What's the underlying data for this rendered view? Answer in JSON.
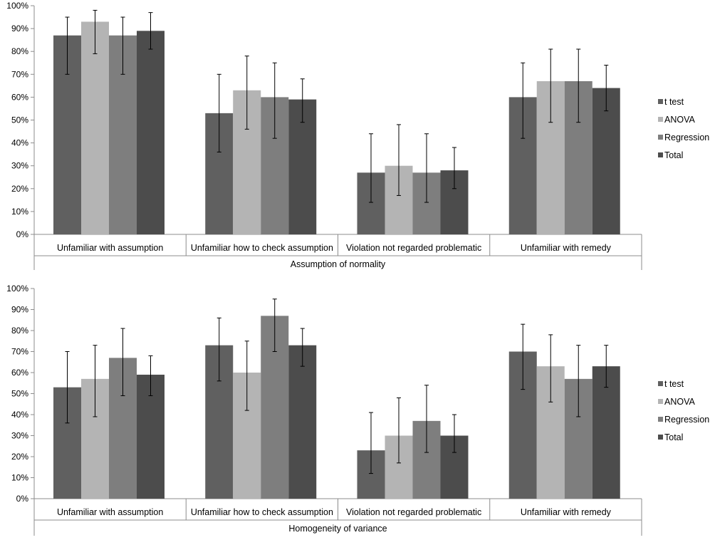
{
  "chart_data": [
    {
      "type": "bar",
      "title": "",
      "xlabel": "Assumption of normality",
      "ylabel": "",
      "ylim": [
        0,
        100
      ],
      "categories": [
        "Unfamiliar with assumption",
        "Unfamiliar how to check assumption",
        "Violation not regarded problematic",
        "Unfamiliar with remedy"
      ],
      "yticks": [
        "0%",
        "10%",
        "20%",
        "30%",
        "40%",
        "50%",
        "60%",
        "70%",
        "80%",
        "90%",
        "100%"
      ],
      "legend_position": "right",
      "series": [
        {
          "name": "t test",
          "color": "#606060",
          "values": [
            87,
            53,
            27,
            60
          ],
          "err_low": [
            70,
            36,
            14,
            42
          ],
          "err_high": [
            95,
            70,
            44,
            75
          ]
        },
        {
          "name": "ANOVA",
          "color": "#b4b4b4",
          "values": [
            93,
            63,
            30,
            67
          ],
          "err_low": [
            79,
            46,
            17,
            49
          ],
          "err_high": [
            98,
            78,
            48,
            81
          ]
        },
        {
          "name": "Regression",
          "color": "#7e7e7e",
          "values": [
            87,
            60,
            27,
            67
          ],
          "err_low": [
            70,
            42,
            14,
            49
          ],
          "err_high": [
            95,
            75,
            44,
            81
          ]
        },
        {
          "name": "Total",
          "color": "#4c4c4c",
          "values": [
            89,
            59,
            28,
            64
          ],
          "err_low": [
            81,
            49,
            20,
            54
          ],
          "err_high": [
            97,
            68,
            38,
            74
          ]
        }
      ]
    },
    {
      "type": "bar",
      "title": "",
      "xlabel": "Homogeneity of variance",
      "ylabel": "",
      "ylim": [
        0,
        100
      ],
      "categories": [
        "Unfamiliar with assumption",
        "Unfamiliar how to check assumption",
        "Violation not regarded problematic",
        "Unfamiliar with remedy"
      ],
      "yticks": [
        "0%",
        "10%",
        "20%",
        "30%",
        "40%",
        "50%",
        "60%",
        "70%",
        "80%",
        "90%",
        "100%"
      ],
      "legend_position": "right",
      "series": [
        {
          "name": "t test",
          "color": "#606060",
          "values": [
            53,
            73,
            23,
            70
          ],
          "err_low": [
            36,
            56,
            12,
            52
          ],
          "err_high": [
            70,
            86,
            41,
            83
          ]
        },
        {
          "name": "ANOVA",
          "color": "#b4b4b4",
          "values": [
            57,
            60,
            30,
            63
          ],
          "err_low": [
            39,
            42,
            17,
            46
          ],
          "err_high": [
            73,
            75,
            48,
            78
          ]
        },
        {
          "name": "Regression",
          "color": "#7e7e7e",
          "values": [
            67,
            87,
            37,
            57
          ],
          "err_low": [
            49,
            70,
            22,
            39
          ],
          "err_high": [
            81,
            95,
            54,
            73
          ]
        },
        {
          "name": "Total",
          "color": "#4c4c4c",
          "values": [
            59,
            73,
            30,
            63
          ],
          "err_low": [
            49,
            63,
            22,
            53
          ],
          "err_high": [
            68,
            81,
            40,
            73
          ]
        }
      ]
    }
  ]
}
